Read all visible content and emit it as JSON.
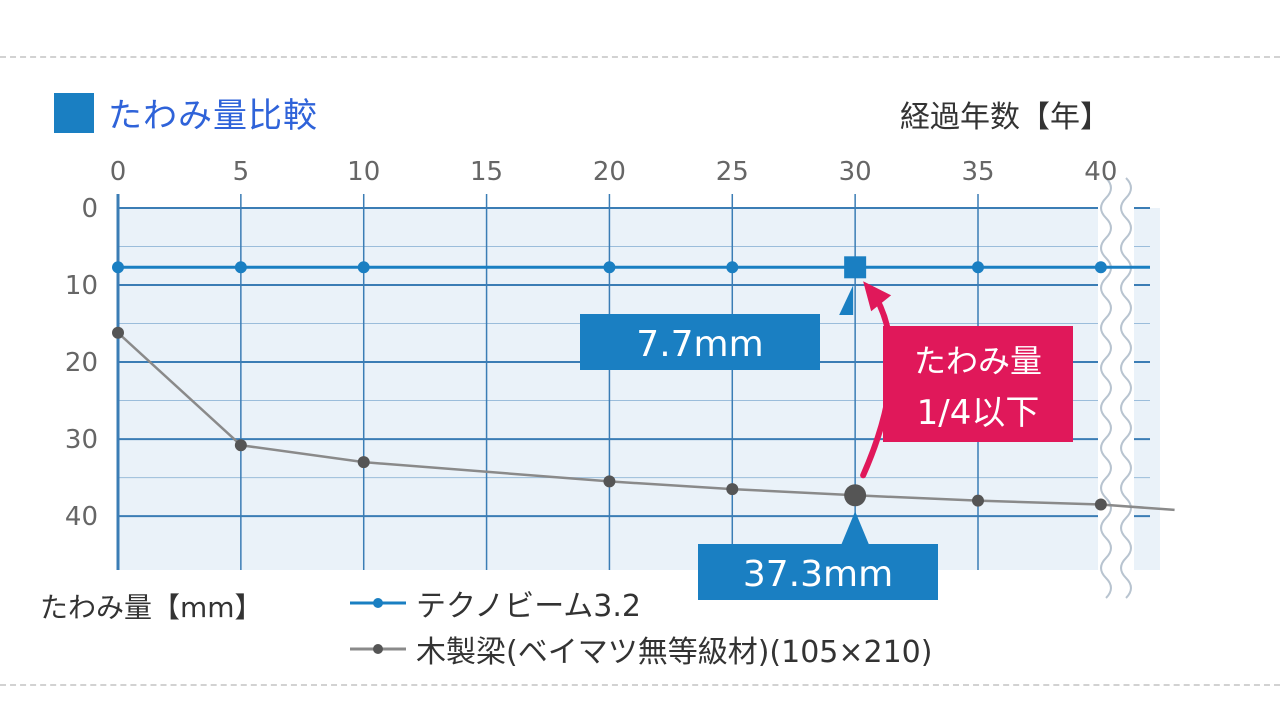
{
  "title": "たわみ量比較",
  "x_unit_label": "経過年数【年】",
  "y_unit_label": "たわみ量【mm】",
  "colors": {
    "series1": "#1a7fc2",
    "series2": "#555555",
    "wood_line": "#8a8a8a",
    "grid": "#3b7db5",
    "plot_bg": "#eaf2f9",
    "callout_blue": "#1a7fc2",
    "callout_red": "#e0185a",
    "title_square": "#1a7fc2"
  },
  "callouts": {
    "techno_value": "7.7mm",
    "wood_value": "37.3mm",
    "reduction_line1": "たわみ量",
    "reduction_line2": "1/4以下"
  },
  "chart_data": {
    "type": "line",
    "title": "たわみ量比較",
    "xlabel": "経過年数【年】",
    "ylabel": "たわみ量【mm】",
    "xlim": [
      0,
      42
    ],
    "ylim": [
      0,
      47
    ],
    "y_inverted": true,
    "x_axis_position": "top",
    "x_ticks": [
      0,
      5,
      10,
      15,
      20,
      25,
      30,
      35,
      40
    ],
    "y_ticks": [
      0,
      10,
      20,
      30,
      40
    ],
    "grid": true,
    "legend_position": "bottom",
    "series": [
      {
        "name": "テクノビーム3.2",
        "x": [
          0,
          5,
          10,
          20,
          25,
          30,
          35,
          40
        ],
        "y": [
          7.7,
          7.7,
          7.7,
          7.7,
          7.7,
          7.7,
          7.7,
          7.7
        ],
        "highlight_x": 30
      },
      {
        "name": "木製梁(ベイマツ無等級材)(105×210)",
        "x": [
          0,
          5,
          10,
          20,
          25,
          30,
          35,
          40,
          43
        ],
        "y": [
          16.2,
          30.8,
          33,
          35.5,
          36.5,
          37.3,
          38,
          38.5,
          39.2
        ],
        "marker_x": [
          0,
          5,
          10,
          20,
          25,
          30,
          35,
          40
        ],
        "highlight_x": 30
      }
    ]
  }
}
